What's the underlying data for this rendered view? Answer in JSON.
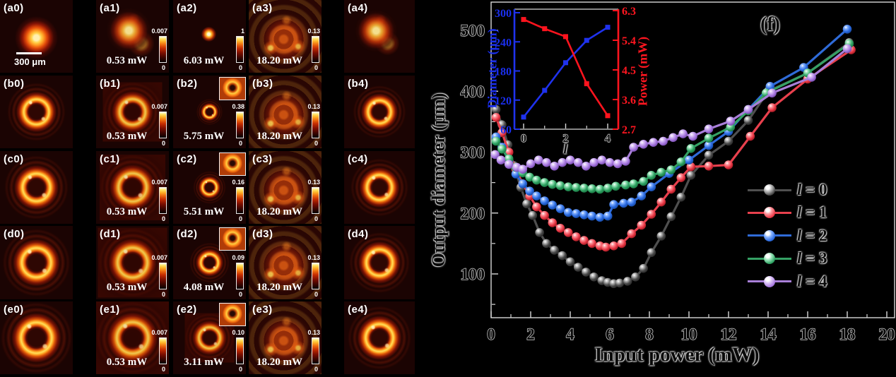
{
  "gallery": {
    "scale_bar_label": "300 μm",
    "colorbar_min_label": "0",
    "rows": [
      {
        "row_id": "a",
        "panels": [
          {
            "label": "(a0)",
            "beam": "spot",
            "scale": 1,
            "scale_bar": true
          },
          {
            "label": "(a1)",
            "beam": "blob",
            "scale": 1,
            "power": "0.53 mW",
            "cbar_max": "0.007"
          },
          {
            "label": "(a2)",
            "beam": "dot",
            "scale": 1,
            "power": "6.03 mW",
            "cbar_max": "1"
          },
          {
            "label": "(a3)",
            "beam": "turbulent",
            "scale": 1,
            "power": "18.20 mW",
            "cbar_max": "0.13"
          },
          {
            "label": "(a4)",
            "beam": "blob",
            "scale": 0.95
          }
        ]
      },
      {
        "row_id": "b",
        "panels": [
          {
            "label": "(b0)",
            "beam": "ring",
            "scale": 0.8
          },
          {
            "label": "(b1)",
            "beam": "ring-halo",
            "scale": 0.82,
            "power": "0.53 mW",
            "cbar_max": "0.007"
          },
          {
            "label": "(b2)",
            "beam": "ring",
            "scale": 0.36,
            "power": "5.75 mW",
            "cbar_max": "0.38",
            "inset": true
          },
          {
            "label": "(b3)",
            "beam": "turbulent",
            "scale": 1,
            "power": "18.20 mW",
            "cbar_max": "0.13"
          },
          {
            "label": "(b4)",
            "beam": "ring",
            "scale": 0.75
          }
        ]
      },
      {
        "row_id": "c",
        "panels": [
          {
            "label": "(c0)",
            "beam": "ring",
            "scale": 0.88
          },
          {
            "label": "(c1)",
            "beam": "ring-halo",
            "scale": 0.9,
            "power": "0.53 mW",
            "cbar_max": "0.007"
          },
          {
            "label": "(c2)",
            "beam": "ring",
            "scale": 0.45,
            "power": "5.51 mW",
            "cbar_max": "0.16",
            "inset": true
          },
          {
            "label": "(c3)",
            "beam": "turbulent",
            "scale": 1,
            "power": "18.20 mW",
            "cbar_max": "0.13"
          },
          {
            "label": "(c4)",
            "beam": "ring",
            "scale": 0.82
          }
        ]
      },
      {
        "row_id": "d",
        "panels": [
          {
            "label": "(d0)",
            "beam": "ring",
            "scale": 0.93
          },
          {
            "label": "(d1)",
            "beam": "ring-halo",
            "scale": 0.95,
            "power": "0.53 mW",
            "cbar_max": "0.007"
          },
          {
            "label": "(d2)",
            "beam": "ring",
            "scale": 0.55,
            "power": "4.08 mW",
            "cbar_max": "0.09",
            "inset": true
          },
          {
            "label": "(d3)",
            "beam": "turbulent",
            "scale": 1,
            "power": "18.20 mW",
            "cbar_max": "0.13"
          },
          {
            "label": "(d4)",
            "beam": "ring",
            "scale": 0.86
          }
        ]
      },
      {
        "row_id": "e",
        "panels": [
          {
            "label": "(e0)",
            "beam": "ring",
            "scale": 0.98
          },
          {
            "label": "(e1)",
            "beam": "ring-halo",
            "scale": 1,
            "power": "0.53 mW",
            "cbar_max": "0.007"
          },
          {
            "label": "(e2)",
            "beam": "ring-halo",
            "scale": 0.68,
            "power": "3.11 mW",
            "cbar_max": "0.10",
            "inset": true
          },
          {
            "label": "(e3)",
            "beam": "turbulent",
            "scale": 1,
            "power": "18.20 mW",
            "cbar_max": "0.13"
          },
          {
            "label": "(e4)",
            "beam": "ring",
            "scale": 0.9
          }
        ]
      }
    ]
  },
  "chart_data": [
    {
      "type": "line",
      "title": "(f)",
      "xlabel": "Input power (mW)",
      "ylabel": "Output diameter (μm)",
      "xlim": [
        0,
        20
      ],
      "ylim": [
        28,
        545
      ],
      "xticks": [
        0,
        2,
        4,
        6,
        8,
        10,
        12,
        14,
        16,
        18,
        20
      ],
      "yticks": [
        100,
        200,
        300,
        400,
        500
      ],
      "grid": false,
      "legend_position": "lower right",
      "series": [
        {
          "name": "l = 0",
          "line": "#4f4f4f",
          "marker": {
            "light": "#bdbdbd",
            "base": "#4a4a4a",
            "dark": "#1d1d1d"
          },
          "points": [
            [
              0.25,
              370
            ],
            [
              0.55,
              345
            ],
            [
              0.85,
              312
            ],
            [
              1.15,
              278
            ],
            [
              1.5,
              242
            ],
            [
              1.8,
              215
            ],
            [
              2.1,
              196
            ],
            [
              2.45,
              168
            ],
            [
              2.8,
              150
            ],
            [
              3.2,
              139
            ],
            [
              3.6,
              130
            ],
            [
              4.0,
              120
            ],
            [
              4.4,
              111
            ],
            [
              4.8,
              103
            ],
            [
              5.2,
              95
            ],
            [
              5.6,
              89
            ],
            [
              5.9,
              86
            ],
            [
              6.2,
              84
            ],
            [
              6.5,
              85
            ],
            [
              6.9,
              88
            ],
            [
              7.3,
              95
            ],
            [
              7.7,
              109
            ],
            [
              8.1,
              135
            ],
            [
              8.6,
              162
            ],
            [
              9.1,
              194
            ],
            [
              9.6,
              226
            ],
            [
              10.1,
              262
            ],
            [
              11,
              295
            ],
            [
              12,
              318
            ],
            [
              13,
              352
            ],
            [
              14,
              400
            ],
            [
              16,
              430
            ],
            [
              18.1,
              480
            ]
          ]
        },
        {
          "name": "l = 1",
          "line": "#e8404d",
          "marker": {
            "light": "#ff9aa0",
            "base": "#ea3a48",
            "dark": "#8f1018"
          },
          "points": [
            [
              0.25,
              357
            ],
            [
              0.55,
              332
            ],
            [
              0.9,
              300
            ],
            [
              1.25,
              272
            ],
            [
              1.6,
              248
            ],
            [
              1.95,
              228
            ],
            [
              2.3,
              210
            ],
            [
              2.7,
              196
            ],
            [
              3.1,
              184
            ],
            [
              3.5,
              175
            ],
            [
              3.9,
              168
            ],
            [
              4.3,
              161
            ],
            [
              4.7,
              155
            ],
            [
              5.1,
              150
            ],
            [
              5.5,
              146
            ],
            [
              5.8,
              144
            ],
            [
              6.2,
              146
            ],
            [
              6.6,
              150
            ],
            [
              7.1,
              166
            ],
            [
              7.6,
              180
            ],
            [
              8.1,
              198
            ],
            [
              8.6,
              218
            ],
            [
              9.1,
              239
            ],
            [
              9.6,
              258
            ],
            [
              10.1,
              276
            ],
            [
              11,
              277
            ],
            [
              12,
              279
            ],
            [
              13.1,
              326
            ],
            [
              14.2,
              373
            ],
            [
              16,
              420
            ],
            [
              18.2,
              468
            ]
          ]
        },
        {
          "name": "l = 2",
          "line": "#2f6bd8",
          "marker": {
            "light": "#86b2ff",
            "base": "#2a6ae0",
            "dark": "#123f90"
          },
          "points": [
            [
              0.25,
              325
            ],
            [
              0.55,
              308
            ],
            [
              0.9,
              285
            ],
            [
              1.25,
              264
            ],
            [
              1.6,
              248
            ],
            [
              1.95,
              236
            ],
            [
              2.3,
              228
            ],
            [
              2.7,
              220
            ],
            [
              3.1,
              213
            ],
            [
              3.5,
              207
            ],
            [
              3.9,
              201
            ],
            [
              4.3,
              199
            ],
            [
              4.7,
              197
            ],
            [
              5.1,
              195
            ],
            [
              5.5,
              193
            ],
            [
              5.9,
              195
            ],
            [
              6.2,
              214
            ],
            [
              6.7,
              216
            ],
            [
              7.1,
              218
            ],
            [
              7.6,
              228
            ],
            [
              8.1,
              243
            ],
            [
              9,
              265
            ],
            [
              10,
              287
            ],
            [
              11,
              311
            ],
            [
              12,
              334
            ],
            [
              13,
              370
            ],
            [
              14.1,
              408
            ],
            [
              15.8,
              439
            ],
            [
              18,
              502
            ]
          ]
        },
        {
          "name": "l = 3",
          "line": "#35a165",
          "marker": {
            "light": "#9fe6bd",
            "base": "#2fa363",
            "dark": "#156b3a"
          },
          "points": [
            [
              0.25,
              318
            ],
            [
              0.55,
              305
            ],
            [
              0.9,
              289
            ],
            [
              1.25,
              275
            ],
            [
              1.6,
              266
            ],
            [
              1.95,
              259
            ],
            [
              2.3,
              254
            ],
            [
              2.7,
              250
            ],
            [
              3.1,
              247
            ],
            [
              3.5,
              245
            ],
            [
              3.9,
              243
            ],
            [
              4.3,
              242
            ],
            [
              4.7,
              241
            ],
            [
              5.1,
              240
            ],
            [
              5.5,
              239
            ],
            [
              5.9,
              241
            ],
            [
              6.3,
              244
            ],
            [
              6.8,
              246
            ],
            [
              7.2,
              248
            ],
            [
              7.7,
              252
            ],
            [
              8.1,
              262
            ],
            [
              8.6,
              267
            ],
            [
              9.1,
              271
            ],
            [
              9.6,
              284
            ],
            [
              10.1,
              306
            ],
            [
              11,
              323
            ],
            [
              12.1,
              341
            ],
            [
              13,
              368
            ],
            [
              13.9,
              397
            ],
            [
              16,
              430
            ],
            [
              18.1,
              478
            ]
          ]
        },
        {
          "name": "l = 4",
          "line": "#a87fd8",
          "marker": {
            "light": "#dcc4f7",
            "base": "#a87ae0",
            "dark": "#6a3fa0"
          },
          "points": [
            [
              0.2,
              296
            ],
            [
              0.5,
              287
            ],
            [
              0.9,
              280
            ],
            [
              1.3,
              275
            ],
            [
              1.6,
              272
            ],
            [
              2.0,
              281
            ],
            [
              2.4,
              287
            ],
            [
              2.8,
              283
            ],
            [
              3.2,
              277
            ],
            [
              3.6,
              283
            ],
            [
              4.0,
              287
            ],
            [
              4.4,
              283
            ],
            [
              4.8,
              277
            ],
            [
              5.2,
              283
            ],
            [
              5.6,
              287
            ],
            [
              6.0,
              283
            ],
            [
              6.4,
              281
            ],
            [
              6.8,
              285
            ],
            [
              7.2,
              308
            ],
            [
              7.7,
              313
            ],
            [
              8.2,
              316
            ],
            [
              8.7,
              318
            ],
            [
              9.2,
              324
            ],
            [
              9.7,
              330
            ],
            [
              10.2,
              326
            ],
            [
              11,
              338
            ],
            [
              12.1,
              351
            ],
            [
              13,
              370
            ],
            [
              14.2,
              397
            ],
            [
              16.2,
              423
            ],
            [
              18,
              470
            ]
          ]
        }
      ]
    },
    {
      "type": "line",
      "xlabel": "l",
      "ylabel_left": "Diameter (μm)",
      "ylabel_right": "Power (mW)",
      "x": [
        0,
        1,
        2,
        3,
        4
      ],
      "xticks": [
        0,
        2,
        4
      ],
      "yticks_left": [
        60,
        120,
        180,
        240,
        300
      ],
      "yticks_right": [
        2.7,
        3.6,
        4.5,
        5.4,
        6.3
      ],
      "ylim_left": [
        60,
        300
      ],
      "ylim_right": [
        2.7,
        6.3
      ],
      "series": [
        {
          "name": "Diameter",
          "axis": "left",
          "color": "#1f32ee",
          "values": [
            85,
            140,
            197,
            243,
            270
          ]
        },
        {
          "name": "Power",
          "axis": "right",
          "color": "#ff141e",
          "values": [
            6.03,
            5.75,
            5.51,
            4.08,
            3.11
          ]
        }
      ]
    }
  ]
}
